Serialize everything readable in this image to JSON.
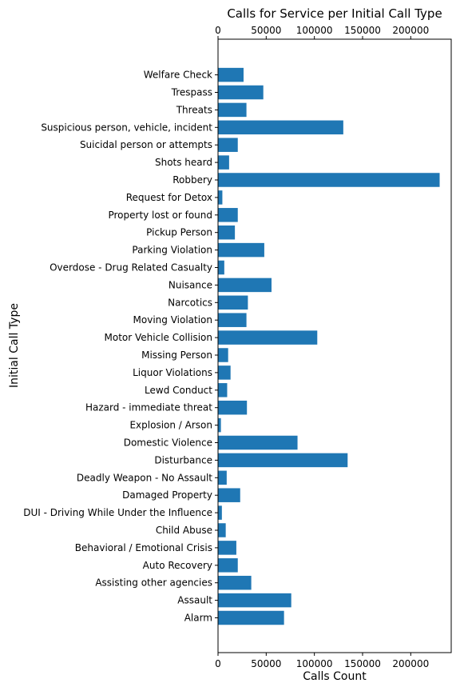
{
  "chart_data": {
    "type": "bar",
    "orientation": "horizontal",
    "title": "Calls for Service per Initial Call Type",
    "xlabel": "Calls Count",
    "ylabel": "Initial Call Type",
    "xlim": [
      0,
      242000
    ],
    "x_ticks": [
      0,
      50000,
      100000,
      150000,
      200000
    ],
    "x_tick_labels": [
      "0",
      "50000",
      "100000",
      "150000",
      "200000"
    ],
    "x_ticks_top_and_bottom": true,
    "grid": false,
    "bar_color": "#1f77b4",
    "categories": [
      "Alarm",
      "Assault",
      "Assisting other agencies",
      "Auto Recovery",
      "Behavioral / Emotional Crisis",
      "Child Abuse",
      "DUI - Driving While Under the Influence",
      "Damaged Property",
      "Deadly Weapon - No Assault",
      "Disturbance",
      "Domestic Violence",
      "Explosion / Arson",
      "Hazard - immediate threat",
      "Lewd Conduct",
      "Liquor Violations",
      "Missing Person",
      "Motor Vehicle Collision",
      "Moving Violation",
      "Narcotics",
      "Nuisance",
      "Overdose - Drug Related Casualty",
      "Parking Violation",
      "Pickup Person",
      "Property lost or found",
      "Request for Detox",
      "Robbery",
      "Shots heard",
      "Suicidal person or attempts",
      "Suspicious person, vehicle, incident",
      "Threats",
      "Trespass",
      "Welfare Check"
    ],
    "values": [
      68500,
      76000,
      34500,
      20500,
      19000,
      8000,
      4000,
      23000,
      9000,
      134500,
      82500,
      3000,
      30000,
      9500,
      13000,
      10500,
      103000,
      29500,
      31000,
      55500,
      6500,
      48000,
      17500,
      20500,
      4500,
      230000,
      11500,
      20500,
      130000,
      29500,
      47000,
      26500
    ]
  }
}
